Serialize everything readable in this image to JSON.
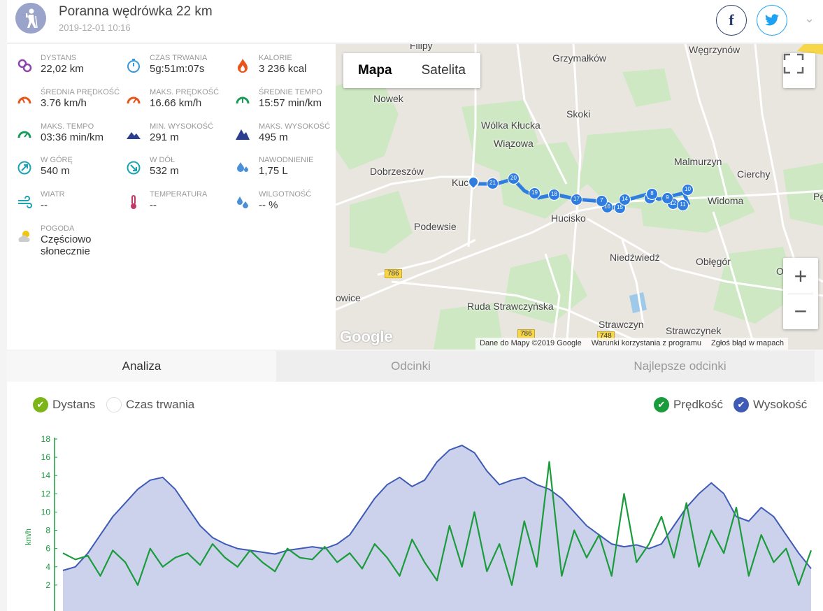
{
  "header": {
    "title": "Poranna wędrówka 22 km",
    "datetime": "2019-12-01 10:16",
    "facebook_label": "f",
    "twitter_icon": "twitter-bird-icon",
    "chevron": "⌄"
  },
  "stats": [
    {
      "label": "DYSTANS",
      "value": "22,02 km",
      "icon": "distance-pins-icon",
      "color": "#8e44ad"
    },
    {
      "label": "CZAS TRWANIA",
      "value": "5g:51m:07s",
      "icon": "stopwatch-icon",
      "color": "#3498db"
    },
    {
      "label": "KALORIE",
      "value": "3 236 kcal",
      "icon": "flame-icon",
      "color": "#e8541a"
    },
    {
      "label": "ŚREDNIA PRĘDKOŚĆ",
      "value": "3.76 km/h",
      "icon": "speedometer-icon",
      "color": "#e8541a"
    },
    {
      "label": "MAKS. PRĘDKOŚĆ",
      "value": "16.66 km/h",
      "icon": "speedometer-max-icon",
      "color": "#e8541a"
    },
    {
      "label": "ŚREDNIE TEMPO",
      "value": "15:57 min/km",
      "icon": "pace-gauge-icon",
      "color": "#1a9b5a"
    },
    {
      "label": "MAKS. TEMPO",
      "value": "03:36 min/km",
      "icon": "pace-gauge-max-icon",
      "color": "#1a9b5a"
    },
    {
      "label": "MIN. WYSOKOŚĆ",
      "value": "291 m",
      "icon": "mountain-min-icon",
      "color": "#2c3e8f"
    },
    {
      "label": "MAKS. WYSOKOŚĆ",
      "value": "495 m",
      "icon": "mountain-max-icon",
      "color": "#2c3e8f"
    },
    {
      "label": "W GÓRĘ",
      "value": "540 m",
      "icon": "arrow-up-circle-icon",
      "color": "#1aa3b5"
    },
    {
      "label": "W DÓŁ",
      "value": "532 m",
      "icon": "arrow-down-circle-icon",
      "color": "#1aa3b5"
    },
    {
      "label": "NAWODNIENIE",
      "value": "1,75 L",
      "icon": "water-drops-icon",
      "color": "#4a90d9"
    },
    {
      "label": "WIATR",
      "value": "--",
      "icon": "wind-icon",
      "color": "#1aa3b5"
    },
    {
      "label": "TEMPERATURA",
      "value": "--",
      "icon": "thermometer-icon",
      "color": "#c0396b"
    },
    {
      "label": "WILGOTNOŚĆ",
      "value": "-- %",
      "icon": "humidity-drops-icon",
      "color": "#4a90d9"
    },
    {
      "label": "POGODA",
      "value": "Częściowo słonecznie",
      "icon": "partly-sunny-icon",
      "color": "#f1c40f"
    }
  ],
  "map": {
    "type_buttons": [
      "Mapa",
      "Satelita"
    ],
    "places": [
      "Filipy",
      "Grzymałków",
      "Węgrzynów",
      "Nowek",
      "Skoki",
      "Wólka Kłucka",
      "Wiązowa",
      "Malmurzyn",
      "Dobrzeszów",
      "Cierchy",
      "Kuc",
      "Widoma",
      "Pę",
      "Podewsie",
      "Hucisko",
      "Niedźwiedź",
      "Obłęgór",
      "Obłęgo",
      "owice",
      "Ruda Strawczyńska",
      "Strawczyn",
      "Strawczynek"
    ],
    "road_numbers": [
      "786",
      "786",
      "748"
    ],
    "markers": [
      "21",
      "20",
      "19",
      "18",
      "17",
      "16",
      "15",
      "14",
      "13",
      "12",
      "11",
      "10",
      "9",
      "8",
      "7"
    ],
    "google_logo": "Google",
    "attribution": [
      "Dane do Mapy ©2019 Google",
      "Warunki korzystania z programu",
      "Zgłoś błąd w mapach"
    ],
    "zoom_in": "+",
    "zoom_out": "−"
  },
  "tabs": [
    "Analiza",
    "Odcinki",
    "Najlepsze odcinki"
  ],
  "chart_controls": {
    "x_options": [
      {
        "label": "Dystans",
        "checked": true
      },
      {
        "label": "Czas trwania",
        "checked": false
      }
    ],
    "series_toggles": [
      {
        "label": "Prędkość",
        "checked": true,
        "color": "#1a9b3c"
      },
      {
        "label": "Wysokość",
        "checked": true,
        "color": "#3f5bb5"
      }
    ]
  },
  "chart_data": {
    "type": "line",
    "ylabel": "km/h",
    "ylim": [
      0,
      18
    ],
    "yticks": [
      2,
      4,
      6,
      8,
      10,
      12,
      14,
      16,
      18
    ],
    "series": [
      {
        "name": "Wysokość",
        "color": "#3f5bb5",
        "fill": "#c9d0ea",
        "values": [
          3.6,
          4.0,
          5.5,
          7.5,
          9.5,
          11.0,
          12.5,
          13.5,
          13.8,
          12.5,
          10.5,
          8.5,
          7.2,
          6.5,
          6.0,
          5.8,
          5.6,
          5.4,
          5.8,
          6.0,
          6.2,
          6.0,
          6.5,
          7.5,
          9.5,
          11.5,
          13.0,
          13.8,
          12.8,
          13.5,
          15.5,
          16.8,
          17.3,
          16.5,
          14.5,
          13.0,
          13.5,
          13.8,
          13.0,
          12.5,
          11.5,
          10.0,
          8.5,
          7.5,
          6.5,
          6.2,
          6.4,
          6.0,
          6.5,
          8.5,
          10.5,
          12.0,
          13.2,
          12.0,
          9.5,
          9.0,
          10.5,
          9.5,
          7.5,
          5.5,
          3.8
        ]
      },
      {
        "name": "Prędkość",
        "color": "#1a9b3c",
        "values": [
          5.5,
          4.8,
          5.2,
          3.0,
          5.8,
          4.5,
          2.0,
          6.0,
          4.0,
          5.0,
          5.5,
          4.2,
          6.5,
          5.0,
          4.0,
          5.8,
          4.5,
          3.5,
          6.0,
          5.0,
          4.8,
          6.2,
          4.5,
          5.5,
          3.8,
          6.5,
          5.0,
          3.0,
          7.0,
          4.5,
          2.5,
          8.5,
          4.0,
          10.0,
          3.5,
          6.5,
          2.0,
          9.0,
          4.0,
          15.5,
          3.0,
          8.0,
          5.0,
          7.5,
          3.0,
          12.0,
          4.5,
          6.5,
          9.5,
          5.0,
          11.0,
          4.0,
          8.0,
          5.5,
          10.5,
          3.0,
          7.5,
          4.5,
          6.0,
          2.0,
          5.8
        ]
      }
    ]
  }
}
